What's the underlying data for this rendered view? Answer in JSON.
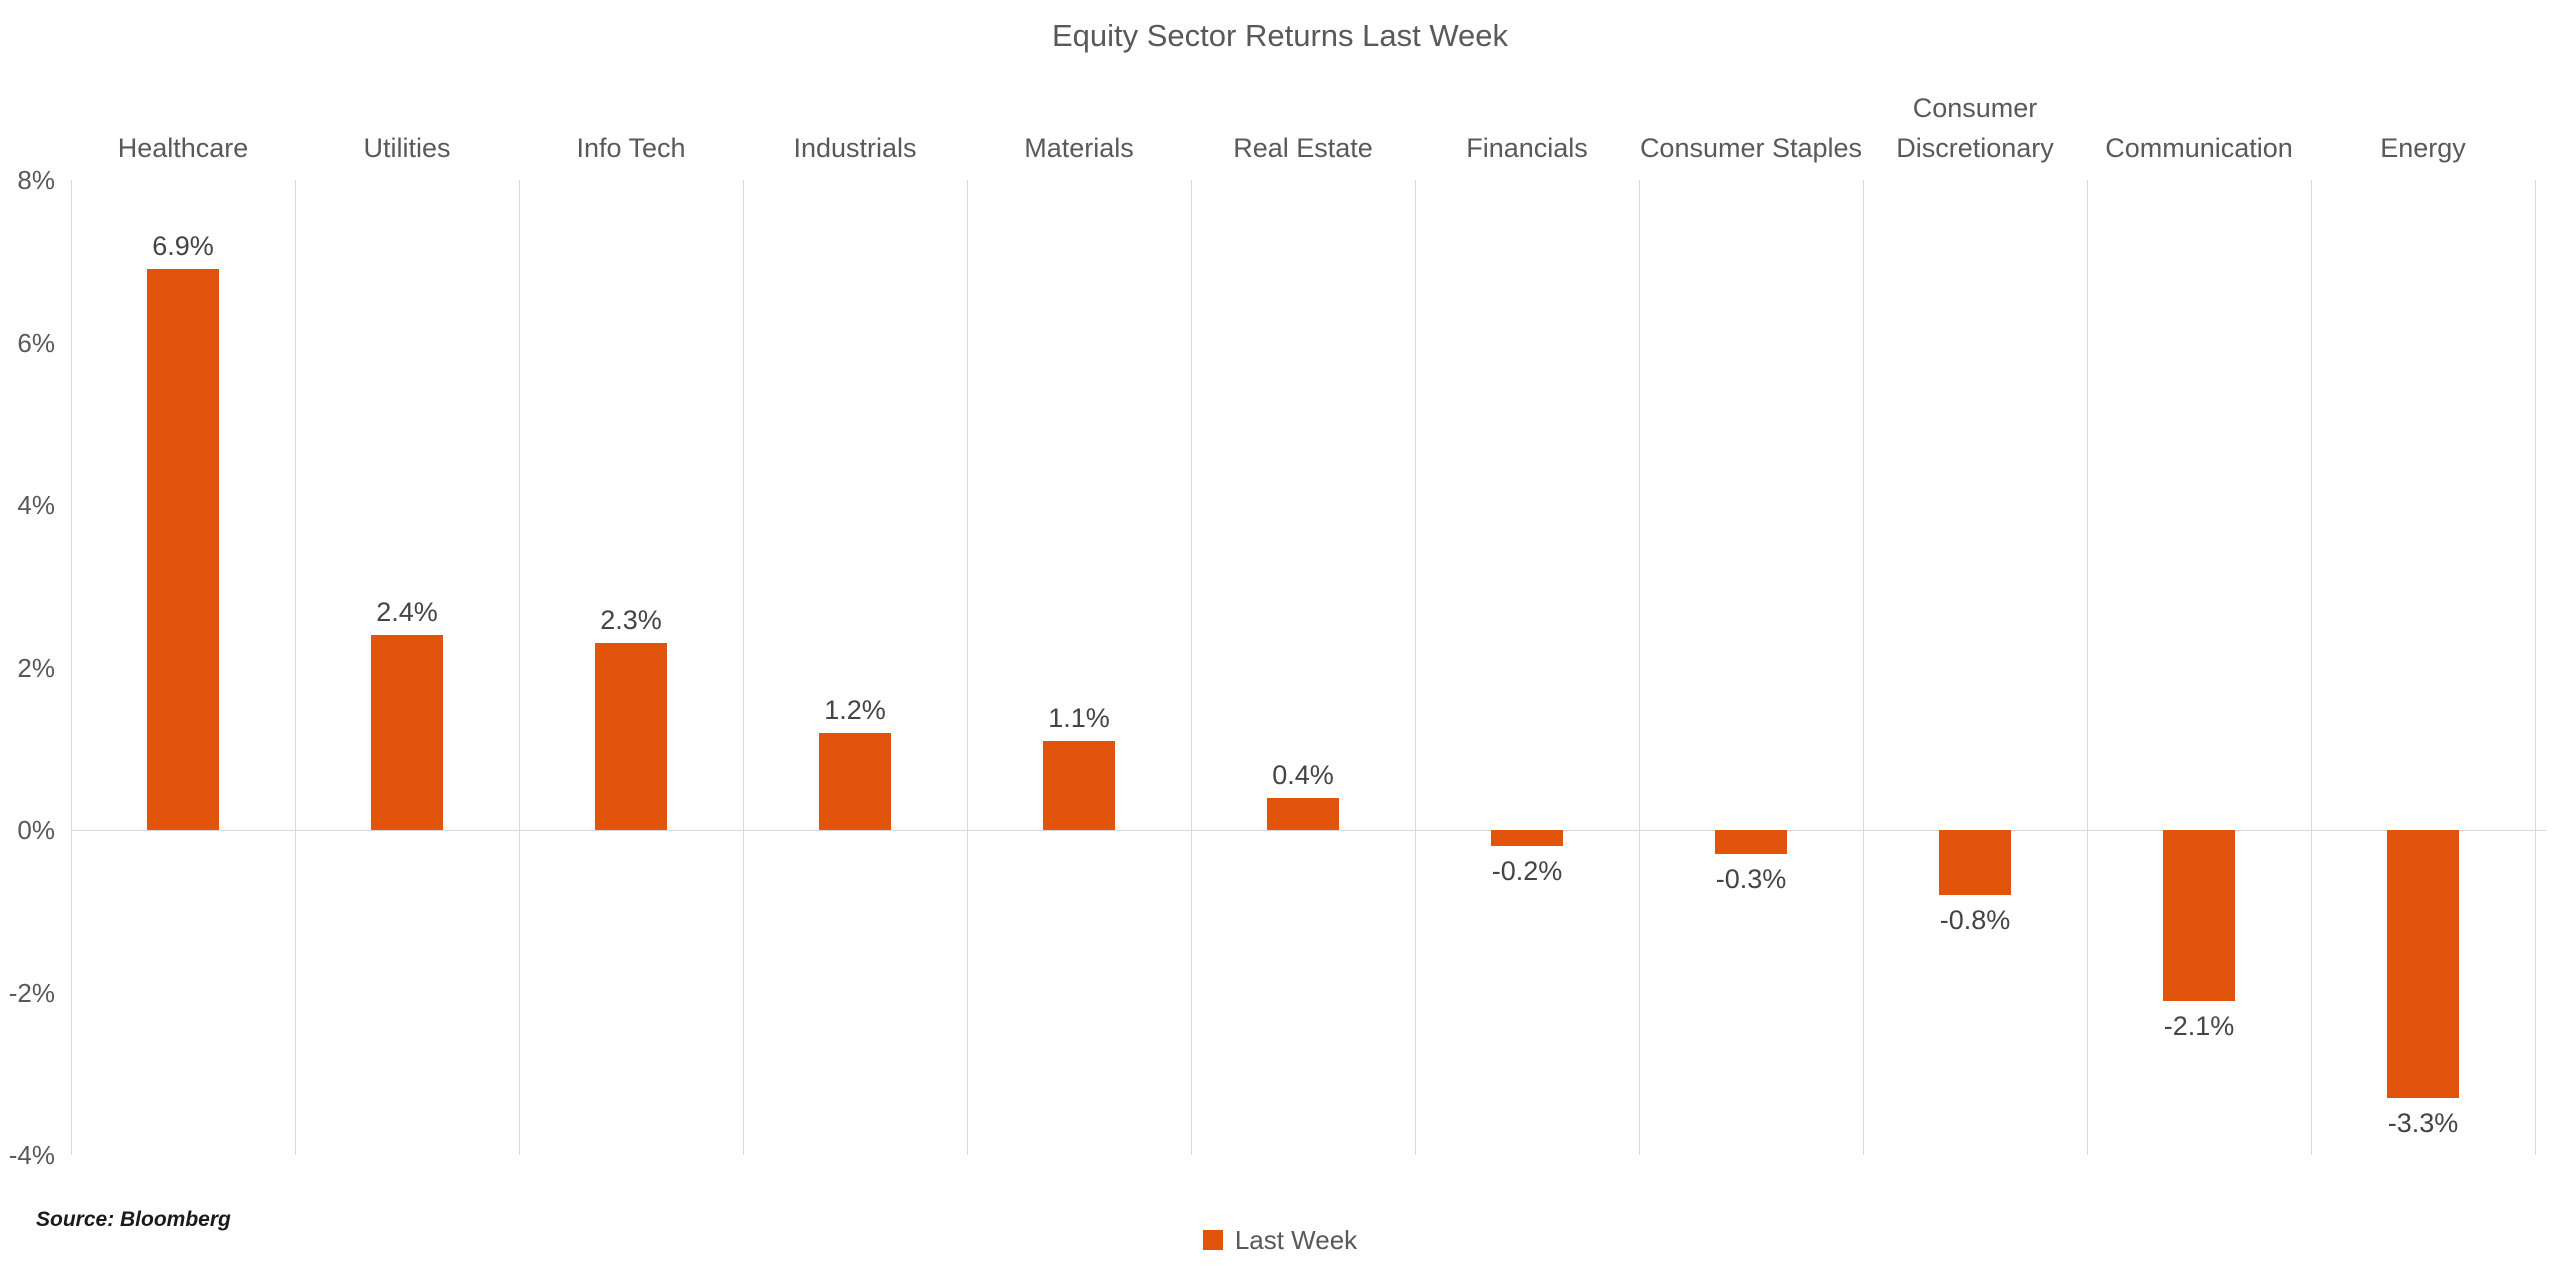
{
  "title": "Equity Sector Returns Last Week",
  "source_note": "Source: Bloomberg",
  "legend": {
    "label": "Last Week"
  },
  "chart_data": {
    "type": "bar",
    "title": "Equity Sector Returns Last Week",
    "categories": [
      "Healthcare",
      "Utilities",
      "Info Tech",
      "Industrials",
      "Materials",
      "Real Estate",
      "Financials",
      "Consumer Staples",
      "Consumer Discretionary",
      "Communication",
      "Energy"
    ],
    "series": [
      {
        "name": "Last Week",
        "values": [
          6.9,
          2.4,
          2.3,
          1.2,
          1.1,
          0.4,
          -0.2,
          -0.3,
          -0.8,
          -2.1,
          -3.3
        ]
      }
    ],
    "value_labels": [
      "6.9%",
      "2.4%",
      "2.3%",
      "1.2%",
      "1.1%",
      "0.4%",
      "-0.2%",
      "-0.3%",
      "-0.8%",
      "-2.1%",
      "-3.3%"
    ],
    "xlabel": "",
    "ylabel": "",
    "ytick_labels": [
      "8%",
      "6%",
      "4%",
      "2%",
      "0%",
      "-2%",
      "-4%"
    ],
    "ylim": [
      -4,
      8
    ],
    "grid": "vertical category separators; horizontal line at 0% only",
    "legend_position": "bottom-center",
    "colors": {
      "bar": "#E2540B",
      "gridline": "#D9D9D9",
      "axis_text": "#595959",
      "value_label_text": "#444444",
      "title_text": "#595959"
    }
  }
}
